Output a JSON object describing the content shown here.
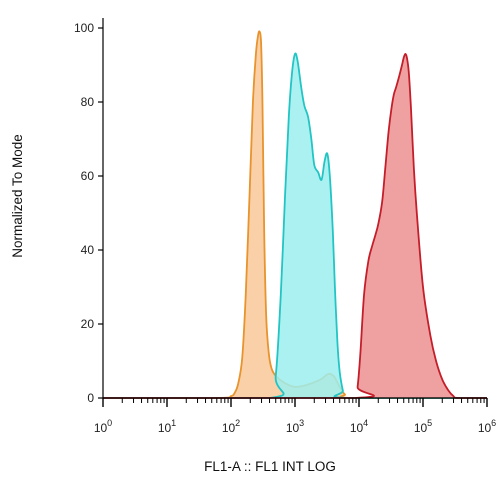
{
  "chart_data": {
    "type": "area",
    "xlabel": "FL1-A :: FL1 INT LOG",
    "ylabel": "Normalized To Mode",
    "x_scale": "log",
    "xlim": [
      1,
      1000000
    ],
    "ylim": [
      0,
      100
    ],
    "y_ticks": [
      0,
      20,
      40,
      60,
      80,
      100
    ],
    "x_ticks": [
      {
        "base": "10",
        "exp": "0"
      },
      {
        "base": "10",
        "exp": "1"
      },
      {
        "base": "10",
        "exp": "2"
      },
      {
        "base": "10",
        "exp": "3"
      },
      {
        "base": "10",
        "exp": "4"
      },
      {
        "base": "10",
        "exp": "5"
      },
      {
        "base": "10",
        "exp": "6"
      }
    ],
    "grid": false,
    "series": [
      {
        "fill": "#f9c89a",
        "stroke": "#e8932c",
        "x": [
          1,
          60,
          100,
          115,
          130,
          150,
          170,
          195,
          220,
          245,
          265,
          280,
          295,
          310,
          330,
          355,
          390,
          430,
          500,
          700,
          1000,
          1500,
          2500,
          3300,
          4000,
          4500,
          5000,
          6000,
          8000,
          1000000
        ],
        "y": [
          0,
          0,
          0.5,
          1.5,
          4,
          11,
          28,
          55,
          80,
          93,
          98,
          99,
          96,
          80,
          45,
          22,
          12,
          8,
          6,
          4,
          3,
          3.5,
          5,
          6.5,
          6,
          4.5,
          3,
          1,
          0,
          0
        ]
      },
      {
        "fill": "#9deeee",
        "stroke": "#22c4c4",
        "x": [
          1,
          400,
          500,
          600,
          700,
          800,
          900,
          1000,
          1100,
          1250,
          1400,
          1600,
          1800,
          2000,
          2300,
          2600,
          2900,
          3200,
          3500,
          3900,
          4200,
          4600,
          5000,
          5600,
          6200,
          1000000
        ],
        "y": [
          0,
          0,
          6,
          28,
          55,
          76,
          88,
          93,
          91,
          84,
          79,
          76,
          70,
          63,
          61,
          59,
          64,
          66,
          60,
          45,
          30,
          15,
          7,
          2,
          0,
          0
        ]
      },
      {
        "fill": "#ec9090",
        "stroke": "#c41e2a",
        "x": [
          1,
          8500,
          9500,
          10500,
          12000,
          14000,
          16000,
          18000,
          20000,
          23000,
          26000,
          29000,
          32000,
          35000,
          38000,
          41000,
          44000,
          47000,
          50000,
          53000,
          56000,
          60000,
          65000,
          72000,
          80000,
          100000,
          130000,
          160000,
          200000,
          250000,
          300000,
          350000,
          1000000
        ],
        "y": [
          0,
          0,
          3,
          12,
          28,
          37,
          41,
          44,
          47,
          53,
          63,
          72,
          78,
          82,
          84,
          86,
          88,
          90,
          92,
          93,
          92,
          88,
          78,
          62,
          50,
          30,
          17,
          10,
          5,
          2,
          0.5,
          0,
          0
        ]
      }
    ]
  }
}
